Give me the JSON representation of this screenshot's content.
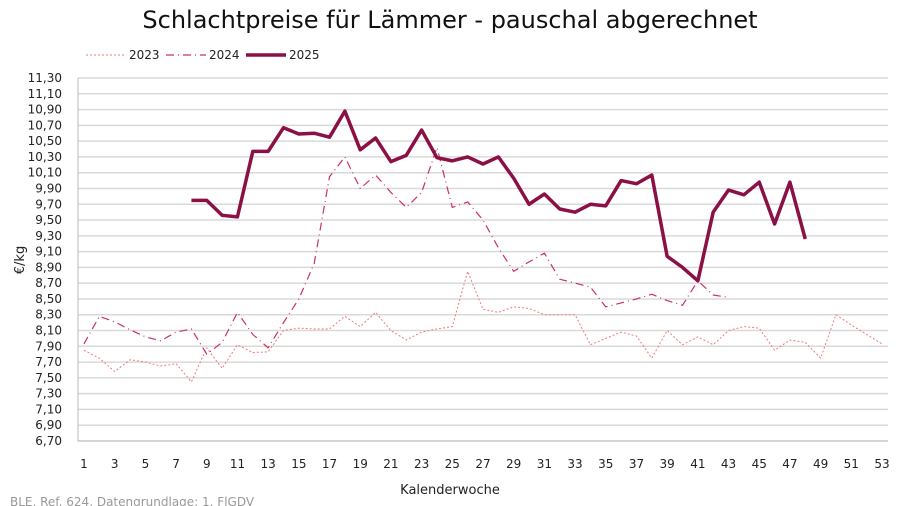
{
  "chart_data": {
    "type": "line",
    "title": "Schlachtpreise für Lämmer - pauschal abgerechnet",
    "xlabel": "Kalenderwoche",
    "ylabel": "€/kg",
    "ylim": [
      6.7,
      11.3
    ],
    "yticks": [
      "6,70",
      "6,90",
      "7,10",
      "7,30",
      "7,50",
      "7,70",
      "7,90",
      "8,10",
      "8,30",
      "8,50",
      "8,70",
      "8,90",
      "9,10",
      "9,30",
      "9,50",
      "9,70",
      "9,90",
      "10,10",
      "10,30",
      "10,50",
      "10,70",
      "10,90",
      "11,10",
      "11,30"
    ],
    "xlim": [
      1,
      53
    ],
    "xticks": [
      "1",
      "3",
      "5",
      "7",
      "9",
      "11",
      "13",
      "15",
      "17",
      "19",
      "21",
      "23",
      "25",
      "27",
      "29",
      "31",
      "33",
      "35",
      "37",
      "39",
      "41",
      "43",
      "45",
      "47",
      "49",
      "51",
      "53"
    ],
    "grid": "horizontal",
    "legend": "top-left",
    "series": [
      {
        "name": "2023",
        "color": "#ef7b7b",
        "style": "dotted",
        "start_week": 1,
        "values": [
          7.85,
          7.75,
          7.58,
          7.73,
          7.7,
          7.65,
          7.68,
          7.45,
          7.88,
          7.62,
          7.92,
          7.82,
          7.83,
          8.1,
          8.13,
          8.12,
          8.12,
          8.28,
          8.15,
          8.33,
          8.1,
          7.98,
          8.08,
          8.12,
          8.15,
          8.85,
          8.37,
          8.33,
          8.4,
          8.38,
          8.3,
          8.3,
          8.3,
          7.92,
          8.0,
          8.08,
          8.03,
          7.75,
          8.1,
          7.92,
          8.02,
          7.92,
          8.1,
          8.15,
          8.13,
          7.85,
          7.98,
          7.95,
          7.75,
          8.3,
          8.17,
          8.05,
          7.93
        ]
      },
      {
        "name": "2024",
        "color": "#c8335f",
        "style": "dashdot",
        "start_week": 1,
        "values": [
          7.93,
          8.28,
          8.21,
          8.11,
          8.02,
          7.97,
          8.08,
          8.12,
          7.8,
          7.95,
          8.33,
          8.05,
          7.88,
          8.2,
          8.5,
          8.95,
          10.05,
          10.3,
          9.9,
          10.07,
          9.85,
          9.66,
          9.85,
          10.42,
          9.66,
          9.73,
          9.5,
          9.15,
          8.85,
          8.97,
          9.08,
          8.75,
          8.7,
          8.65,
          8.4,
          8.45,
          8.5,
          8.56,
          8.48,
          8.42,
          8.73,
          8.55,
          8.52
        ]
      },
      {
        "name": "2025",
        "color": "#8b1046",
        "style": "solid",
        "start_week": 8,
        "values": [
          9.75,
          9.75,
          9.56,
          9.54,
          10.37,
          10.37,
          10.67,
          10.59,
          10.6,
          10.55,
          10.88,
          10.39,
          10.54,
          10.24,
          10.32,
          10.64,
          10.29,
          10.25,
          10.3,
          10.21,
          10.3,
          10.03,
          9.7,
          9.83,
          9.64,
          9.6,
          9.7,
          9.68,
          10.0,
          9.96,
          10.07,
          9.04,
          8.9,
          8.73,
          9.6,
          9.88,
          9.82,
          9.98,
          9.45,
          9.98,
          9.26
        ]
      }
    ]
  },
  "footer": "BLE, Ref. 624, Datengrundlage: 1. FlGDV"
}
